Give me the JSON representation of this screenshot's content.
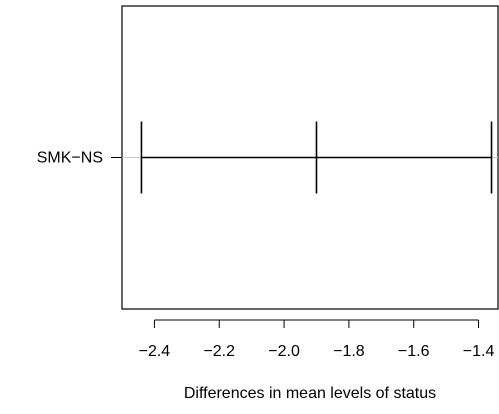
{
  "chart_data": {
    "type": "errorbar",
    "title": "",
    "xlabel": "Differences in mean levels of status",
    "ylabel": "",
    "categories": [
      "SMK−NS"
    ],
    "series": [
      {
        "lower": [
          -2.44
        ],
        "estimate": [
          -1.9
        ],
        "upper": [
          -1.36
        ]
      }
    ],
    "xlim": [
      -2.5,
      -1.34
    ],
    "xticks": [
      -2.4,
      -2.2,
      -2.0,
      -1.8,
      -1.6,
      -1.4
    ],
    "xtick_labels": [
      "−2.4",
      "−2.2",
      "−2.0",
      "−1.8",
      "−1.6",
      "−1.4"
    ],
    "grid": false,
    "legend": "none"
  }
}
